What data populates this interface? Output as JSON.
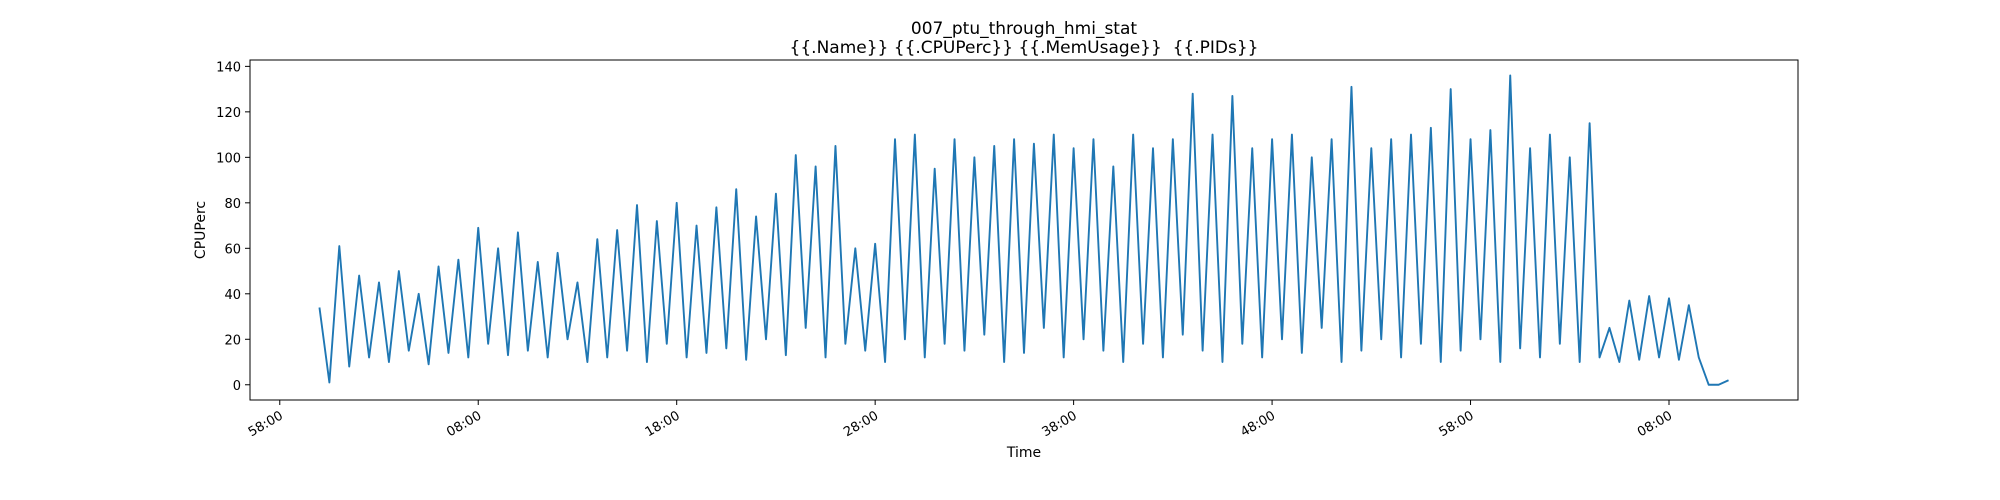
{
  "chart_data": {
    "type": "line",
    "title": "007_ptu_through_hmi_stat",
    "subtitle": "{{.Name}} {{.CPUPerc}} {{.MemUsage}}  {{.PIDs}}",
    "x_label": "Time",
    "y_label": "CPUPerc",
    "color": "#1f77b4",
    "x": [
      2.0,
      2.5,
      3.0,
      3.5,
      4.0,
      4.5,
      5.0,
      5.5,
      6.0,
      6.5,
      7.0,
      7.5,
      8.0,
      8.5,
      9.0,
      9.5,
      10.0,
      10.5,
      11.0,
      11.5,
      12.0,
      12.5,
      13.0,
      13.5,
      14.0,
      14.5,
      15.0,
      15.5,
      16.0,
      16.5,
      17.0,
      17.5,
      18.0,
      18.5,
      19.0,
      19.5,
      20.0,
      20.5,
      21.0,
      21.5,
      22.0,
      22.5,
      23.0,
      23.5,
      24.0,
      24.5,
      25.0,
      25.5,
      26.0,
      26.5,
      27.0,
      27.5,
      28.0,
      28.5,
      29.0,
      29.5,
      30.0,
      30.5,
      31.0,
      31.5,
      32.0,
      32.5,
      33.0,
      33.5,
      34.0,
      34.5,
      35.0,
      35.5,
      36.0,
      36.5,
      37.0,
      37.5,
      38.0,
      38.5,
      39.0,
      39.5,
      40.0,
      40.5,
      41.0,
      41.5,
      42.0,
      42.5,
      43.0,
      43.5,
      44.0,
      44.5,
      45.0,
      45.5,
      46.0,
      46.5,
      47.0,
      47.5,
      48.0,
      48.5,
      49.0,
      49.5,
      50.0,
      50.5,
      51.0,
      51.5,
      52.0,
      52.5,
      53.0,
      53.5,
      54.0,
      54.5,
      55.0,
      55.5,
      56.0,
      56.5,
      57.0,
      57.5,
      58.0,
      58.5,
      59.0,
      59.5,
      60.0,
      60.5,
      61.0,
      61.5,
      62.0,
      62.5,
      63.0,
      63.5,
      64.0,
      64.5,
      65.0,
      65.5,
      66.0,
      66.5,
      67.0,
      67.5,
      68.0,
      68.5,
      69.0,
      69.5,
      70.0,
      70.5,
      71.0,
      71.5,
      72.0,
      72.5,
      73.0
    ],
    "values": [
      34,
      1,
      61,
      8,
      48,
      12,
      45,
      10,
      50,
      15,
      40,
      9,
      52,
      14,
      55,
      12,
      69,
      18,
      60,
      13,
      67,
      15,
      54,
      12,
      58,
      20,
      45,
      10,
      64,
      12,
      68,
      15,
      79,
      10,
      72,
      18,
      80,
      12,
      70,
      14,
      78,
      16,
      86,
      11,
      74,
      20,
      84,
      13,
      101,
      25,
      96,
      12,
      105,
      18,
      60,
      15,
      62,
      10,
      108,
      20,
      110,
      12,
      95,
      18,
      108,
      15,
      100,
      22,
      105,
      10,
      108,
      14,
      106,
      25,
      110,
      12,
      104,
      20,
      108,
      15,
      96,
      10,
      110,
      18,
      104,
      12,
      108,
      22,
      128,
      15,
      110,
      10,
      127,
      18,
      104,
      12,
      108,
      20,
      110,
      14,
      100,
      25,
      108,
      10,
      131,
      15,
      104,
      20,
      108,
      12,
      110,
      18,
      113,
      10,
      130,
      15,
      108,
      20,
      112,
      10,
      136,
      16,
      104,
      12,
      110,
      18,
      100,
      10,
      115,
      12,
      25,
      10,
      37,
      11,
      39,
      12,
      38,
      11,
      35,
      12,
      0,
      0,
      2
    ],
    "xlim": [
      -1.5,
      76.5
    ],
    "ylim": [
      -6.7,
      142.8
    ],
    "xticks": [
      {
        "value": 0,
        "label": "58:00"
      },
      {
        "value": 10,
        "label": "08:00"
      },
      {
        "value": 20,
        "label": "18:00"
      },
      {
        "value": 30,
        "label": "28:00"
      },
      {
        "value": 40,
        "label": "38:00"
      },
      {
        "value": 50,
        "label": "48:00"
      },
      {
        "value": 60,
        "label": "58:00"
      },
      {
        "value": 70,
        "label": "08:00"
      }
    ],
    "yticks": [
      0,
      20,
      40,
      60,
      80,
      100,
      120,
      140
    ]
  }
}
